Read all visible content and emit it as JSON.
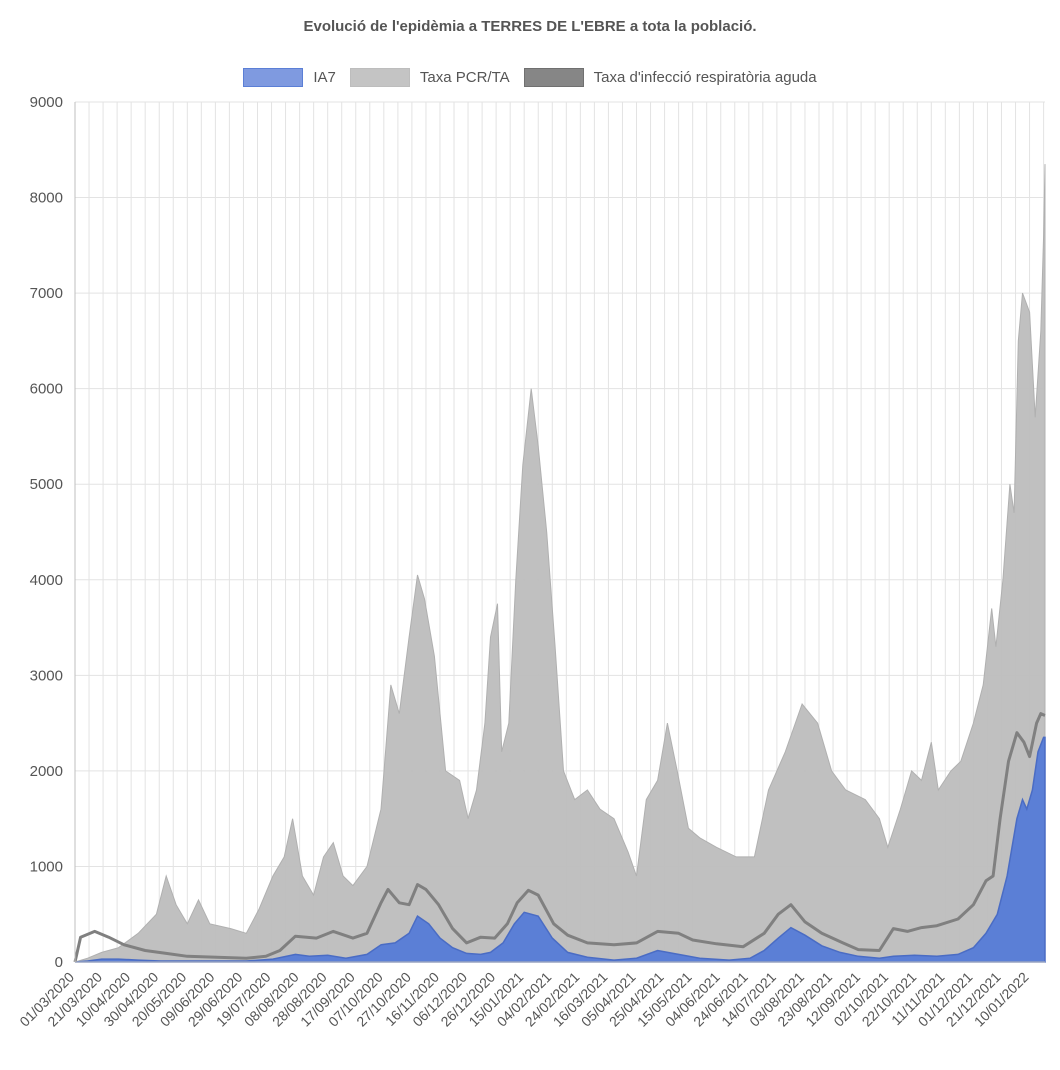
{
  "chart_data": {
    "type": "area",
    "title": "Evolució de l'epidèmia a TERRES DE L'EBRE a tota la població.",
    "xlabel": "",
    "ylabel": "",
    "ylim": [
      0,
      9000
    ],
    "y_ticks": [
      "0",
      "1000",
      "2000",
      "3000",
      "4000",
      "5000",
      "6000",
      "7000",
      "8000",
      "9000"
    ],
    "grid": true,
    "legend_position": "top",
    "x_tick_labels": [
      "01/03/2020",
      "21/03/2020",
      "10/04/2020",
      "30/04/2020",
      "20/05/2020",
      "09/06/2020",
      "29/06/2020",
      "19/07/2020",
      "08/08/2020",
      "28/08/2020",
      "17/09/2020",
      "07/10/2020",
      "27/10/2020",
      "16/11/2020",
      "06/12/2020",
      "26/12/2020",
      "15/01/2021",
      "04/02/2021",
      "24/02/2021",
      "16/03/2021",
      "05/04/2021",
      "25/04/2021",
      "15/05/2021",
      "04/06/2021",
      "24/06/2021",
      "14/07/2021",
      "03/08/2021",
      "23/08/2021",
      "12/09/2021",
      "02/10/2021",
      "22/10/2021",
      "11/11/2021",
      "01/12/2021",
      "21/12/2021",
      "10/01/2022"
    ],
    "x_start": "2020-03-01",
    "x_end": "2022-01-21",
    "series": [
      {
        "name": "IA7",
        "color": "#5b7fd6",
        "fill": "#5b7fd6",
        "points": [
          [
            "2020-03-01",
            0
          ],
          [
            "2020-03-10",
            10
          ],
          [
            "2020-03-20",
            30
          ],
          [
            "2020-04-01",
            30
          ],
          [
            "2020-04-15",
            20
          ],
          [
            "2020-05-01",
            10
          ],
          [
            "2020-06-01",
            10
          ],
          [
            "2020-07-01",
            10
          ],
          [
            "2020-07-20",
            30
          ],
          [
            "2020-08-05",
            80
          ],
          [
            "2020-08-15",
            60
          ],
          [
            "2020-08-28",
            70
          ],
          [
            "2020-09-10",
            40
          ],
          [
            "2020-09-25",
            80
          ],
          [
            "2020-10-05",
            180
          ],
          [
            "2020-10-15",
            200
          ],
          [
            "2020-10-25",
            300
          ],
          [
            "2020-10-31",
            480
          ],
          [
            "2020-11-08",
            400
          ],
          [
            "2020-11-16",
            250
          ],
          [
            "2020-11-25",
            150
          ],
          [
            "2020-12-05",
            90
          ],
          [
            "2020-12-15",
            80
          ],
          [
            "2020-12-22",
            100
          ],
          [
            "2020-12-31",
            200
          ],
          [
            "2021-01-08",
            400
          ],
          [
            "2021-01-15",
            520
          ],
          [
            "2021-01-25",
            480
          ],
          [
            "2021-02-04",
            250
          ],
          [
            "2021-02-15",
            100
          ],
          [
            "2021-03-01",
            50
          ],
          [
            "2021-03-20",
            20
          ],
          [
            "2021-04-05",
            40
          ],
          [
            "2021-04-20",
            120
          ],
          [
            "2021-05-05",
            80
          ],
          [
            "2021-05-20",
            40
          ],
          [
            "2021-06-10",
            20
          ],
          [
            "2021-06-25",
            40
          ],
          [
            "2021-07-05",
            120
          ],
          [
            "2021-07-15",
            250
          ],
          [
            "2021-07-24",
            360
          ],
          [
            "2021-08-03",
            280
          ],
          [
            "2021-08-15",
            170
          ],
          [
            "2021-08-28",
            100
          ],
          [
            "2021-09-10",
            60
          ],
          [
            "2021-09-25",
            40
          ],
          [
            "2021-10-05",
            60
          ],
          [
            "2021-10-20",
            70
          ],
          [
            "2021-11-05",
            60
          ],
          [
            "2021-11-20",
            80
          ],
          [
            "2021-12-01",
            150
          ],
          [
            "2021-12-10",
            300
          ],
          [
            "2021-12-18",
            500
          ],
          [
            "2021-12-25",
            900
          ],
          [
            "2022-01-01",
            1500
          ],
          [
            "2022-01-05",
            1700
          ],
          [
            "2022-01-08",
            1600
          ],
          [
            "2022-01-12",
            1800
          ],
          [
            "2022-01-16",
            2200
          ],
          [
            "2022-01-20",
            2350
          ],
          [
            "2022-01-21",
            2350
          ]
        ]
      },
      {
        "name": "Taxa PCR/TA",
        "color": "#bdbdbd",
        "fill": "#bdbdbd",
        "points": [
          [
            "2020-03-01",
            0
          ],
          [
            "2020-03-10",
            40
          ],
          [
            "2020-03-20",
            100
          ],
          [
            "2020-04-01",
            150
          ],
          [
            "2020-04-15",
            300
          ],
          [
            "2020-04-28",
            500
          ],
          [
            "2020-05-05",
            900
          ],
          [
            "2020-05-12",
            600
          ],
          [
            "2020-05-20",
            400
          ],
          [
            "2020-05-28",
            650
          ],
          [
            "2020-06-05",
            400
          ],
          [
            "2020-06-20",
            350
          ],
          [
            "2020-07-01",
            300
          ],
          [
            "2020-07-10",
            550
          ],
          [
            "2020-07-20",
            900
          ],
          [
            "2020-07-28",
            1100
          ],
          [
            "2020-08-03",
            1500
          ],
          [
            "2020-08-10",
            900
          ],
          [
            "2020-08-18",
            700
          ],
          [
            "2020-08-25",
            1100
          ],
          [
            "2020-09-01",
            1250
          ],
          [
            "2020-09-08",
            900
          ],
          [
            "2020-09-15",
            800
          ],
          [
            "2020-09-25",
            1000
          ],
          [
            "2020-10-05",
            1600
          ],
          [
            "2020-10-12",
            2900
          ],
          [
            "2020-10-18",
            2600
          ],
          [
            "2020-10-25",
            3400
          ],
          [
            "2020-10-31",
            4050
          ],
          [
            "2020-11-05",
            3800
          ],
          [
            "2020-11-12",
            3200
          ],
          [
            "2020-11-20",
            2000
          ],
          [
            "2020-11-30",
            1900
          ],
          [
            "2020-12-06",
            1500
          ],
          [
            "2020-12-12",
            1800
          ],
          [
            "2020-12-18",
            2500
          ],
          [
            "2020-12-22",
            3400
          ],
          [
            "2020-12-27",
            3750
          ],
          [
            "2020-12-30",
            2200
          ],
          [
            "2021-01-04",
            2500
          ],
          [
            "2021-01-09",
            4000
          ],
          [
            "2021-01-14",
            5200
          ],
          [
            "2021-01-20",
            6000
          ],
          [
            "2021-01-25",
            5400
          ],
          [
            "2021-01-31",
            4500
          ],
          [
            "2021-02-06",
            3300
          ],
          [
            "2021-02-12",
            2000
          ],
          [
            "2021-02-20",
            1700
          ],
          [
            "2021-03-01",
            1800
          ],
          [
            "2021-03-10",
            1600
          ],
          [
            "2021-03-20",
            1500
          ],
          [
            "2021-03-30",
            1150
          ],
          [
            "2021-04-05",
            900
          ],
          [
            "2021-04-12",
            1700
          ],
          [
            "2021-04-20",
            1900
          ],
          [
            "2021-04-27",
            2500
          ],
          [
            "2021-05-04",
            2000
          ],
          [
            "2021-05-12",
            1400
          ],
          [
            "2021-05-20",
            1300
          ],
          [
            "2021-06-01",
            1200
          ],
          [
            "2021-06-15",
            1100
          ],
          [
            "2021-06-28",
            1100
          ],
          [
            "2021-07-08",
            1800
          ],
          [
            "2021-07-20",
            2200
          ],
          [
            "2021-08-01",
            2700
          ],
          [
            "2021-08-12",
            2500
          ],
          [
            "2021-08-22",
            2000
          ],
          [
            "2021-09-01",
            1800
          ],
          [
            "2021-09-15",
            1700
          ],
          [
            "2021-09-25",
            1500
          ],
          [
            "2021-10-01",
            1200
          ],
          [
            "2021-10-10",
            1600
          ],
          [
            "2021-10-18",
            2000
          ],
          [
            "2021-10-25",
            1900
          ],
          [
            "2021-11-01",
            2300
          ],
          [
            "2021-11-06",
            1800
          ],
          [
            "2021-11-15",
            2000
          ],
          [
            "2021-11-22",
            2100
          ],
          [
            "2021-12-01",
            2500
          ],
          [
            "2021-12-08",
            2900
          ],
          [
            "2021-12-14",
            3700
          ],
          [
            "2021-12-17",
            3300
          ],
          [
            "2021-12-22",
            4000
          ],
          [
            "2021-12-27",
            5000
          ],
          [
            "2021-12-30",
            4700
          ],
          [
            "2022-01-02",
            6500
          ],
          [
            "2022-01-05",
            7000
          ],
          [
            "2022-01-10",
            6800
          ],
          [
            "2022-01-14",
            5700
          ],
          [
            "2022-01-18",
            6600
          ],
          [
            "2022-01-20",
            7600
          ],
          [
            "2022-01-21",
            8350
          ]
        ]
      },
      {
        "name": "Taxa d'infecció respiratòria aguda",
        "color": "#808080",
        "fill": "#808080",
        "points": [
          [
            "2020-03-01",
            0
          ],
          [
            "2020-03-05",
            260
          ],
          [
            "2020-03-15",
            320
          ],
          [
            "2020-03-25",
            260
          ],
          [
            "2020-04-05",
            180
          ],
          [
            "2020-04-20",
            120
          ],
          [
            "2020-05-05",
            90
          ],
          [
            "2020-05-20",
            60
          ],
          [
            "2020-06-10",
            50
          ],
          [
            "2020-07-01",
            40
          ],
          [
            "2020-07-15",
            60
          ],
          [
            "2020-07-25",
            120
          ],
          [
            "2020-08-05",
            270
          ],
          [
            "2020-08-20",
            250
          ],
          [
            "2020-09-01",
            320
          ],
          [
            "2020-09-15",
            250
          ],
          [
            "2020-09-25",
            300
          ],
          [
            "2020-10-05",
            620
          ],
          [
            "2020-10-10",
            760
          ],
          [
            "2020-10-18",
            620
          ],
          [
            "2020-10-25",
            600
          ],
          [
            "2020-10-31",
            810
          ],
          [
            "2020-11-06",
            760
          ],
          [
            "2020-11-15",
            600
          ],
          [
            "2020-11-25",
            350
          ],
          [
            "2020-12-05",
            200
          ],
          [
            "2020-12-15",
            260
          ],
          [
            "2020-12-25",
            250
          ],
          [
            "2021-01-03",
            400
          ],
          [
            "2021-01-10",
            620
          ],
          [
            "2021-01-18",
            750
          ],
          [
            "2021-01-25",
            700
          ],
          [
            "2021-02-05",
            400
          ],
          [
            "2021-02-15",
            280
          ],
          [
            "2021-03-01",
            200
          ],
          [
            "2021-03-20",
            180
          ],
          [
            "2021-04-05",
            200
          ],
          [
            "2021-04-20",
            320
          ],
          [
            "2021-05-05",
            300
          ],
          [
            "2021-05-15",
            230
          ],
          [
            "2021-06-01",
            190
          ],
          [
            "2021-06-20",
            160
          ],
          [
            "2021-07-05",
            300
          ],
          [
            "2021-07-15",
            500
          ],
          [
            "2021-07-24",
            600
          ],
          [
            "2021-08-03",
            420
          ],
          [
            "2021-08-15",
            300
          ],
          [
            "2021-08-30",
            200
          ],
          [
            "2021-09-10",
            130
          ],
          [
            "2021-09-25",
            120
          ],
          [
            "2021-10-05",
            350
          ],
          [
            "2021-10-15",
            320
          ],
          [
            "2021-10-25",
            360
          ],
          [
            "2021-11-05",
            380
          ],
          [
            "2021-11-20",
            450
          ],
          [
            "2021-12-01",
            600
          ],
          [
            "2021-12-10",
            850
          ],
          [
            "2021-12-15",
            900
          ],
          [
            "2021-12-20",
            1500
          ],
          [
            "2021-12-26",
            2100
          ],
          [
            "2022-01-01",
            2400
          ],
          [
            "2022-01-06",
            2300
          ],
          [
            "2022-01-10",
            2150
          ],
          [
            "2022-01-15",
            2500
          ],
          [
            "2022-01-18",
            2600
          ],
          [
            "2022-01-21",
            2580
          ]
        ]
      }
    ]
  }
}
